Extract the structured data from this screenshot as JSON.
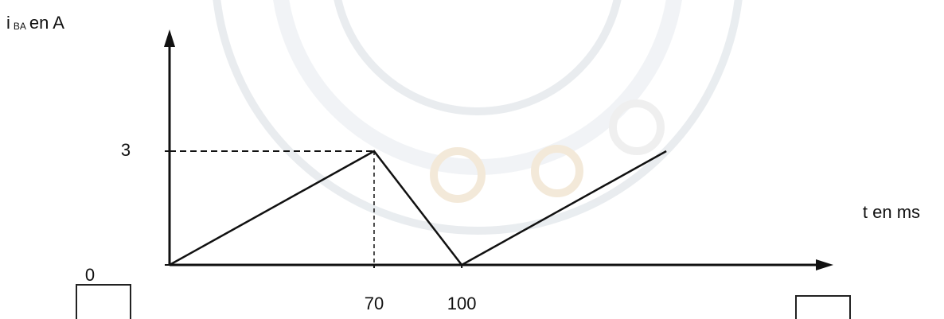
{
  "chart_data": {
    "type": "line",
    "x_label": "t en ms",
    "y_label": {
      "main": "i",
      "sub": "BA",
      "unit": "en A"
    },
    "x": [
      0,
      70,
      100,
      170
    ],
    "values": [
      0,
      3,
      0,
      3
    ],
    "color": "#111111",
    "xlim": [
      0,
      225
    ],
    "ylim": [
      0,
      6
    ],
    "xticks": [
      70,
      100
    ],
    "yticks": [
      0,
      3
    ]
  }
}
